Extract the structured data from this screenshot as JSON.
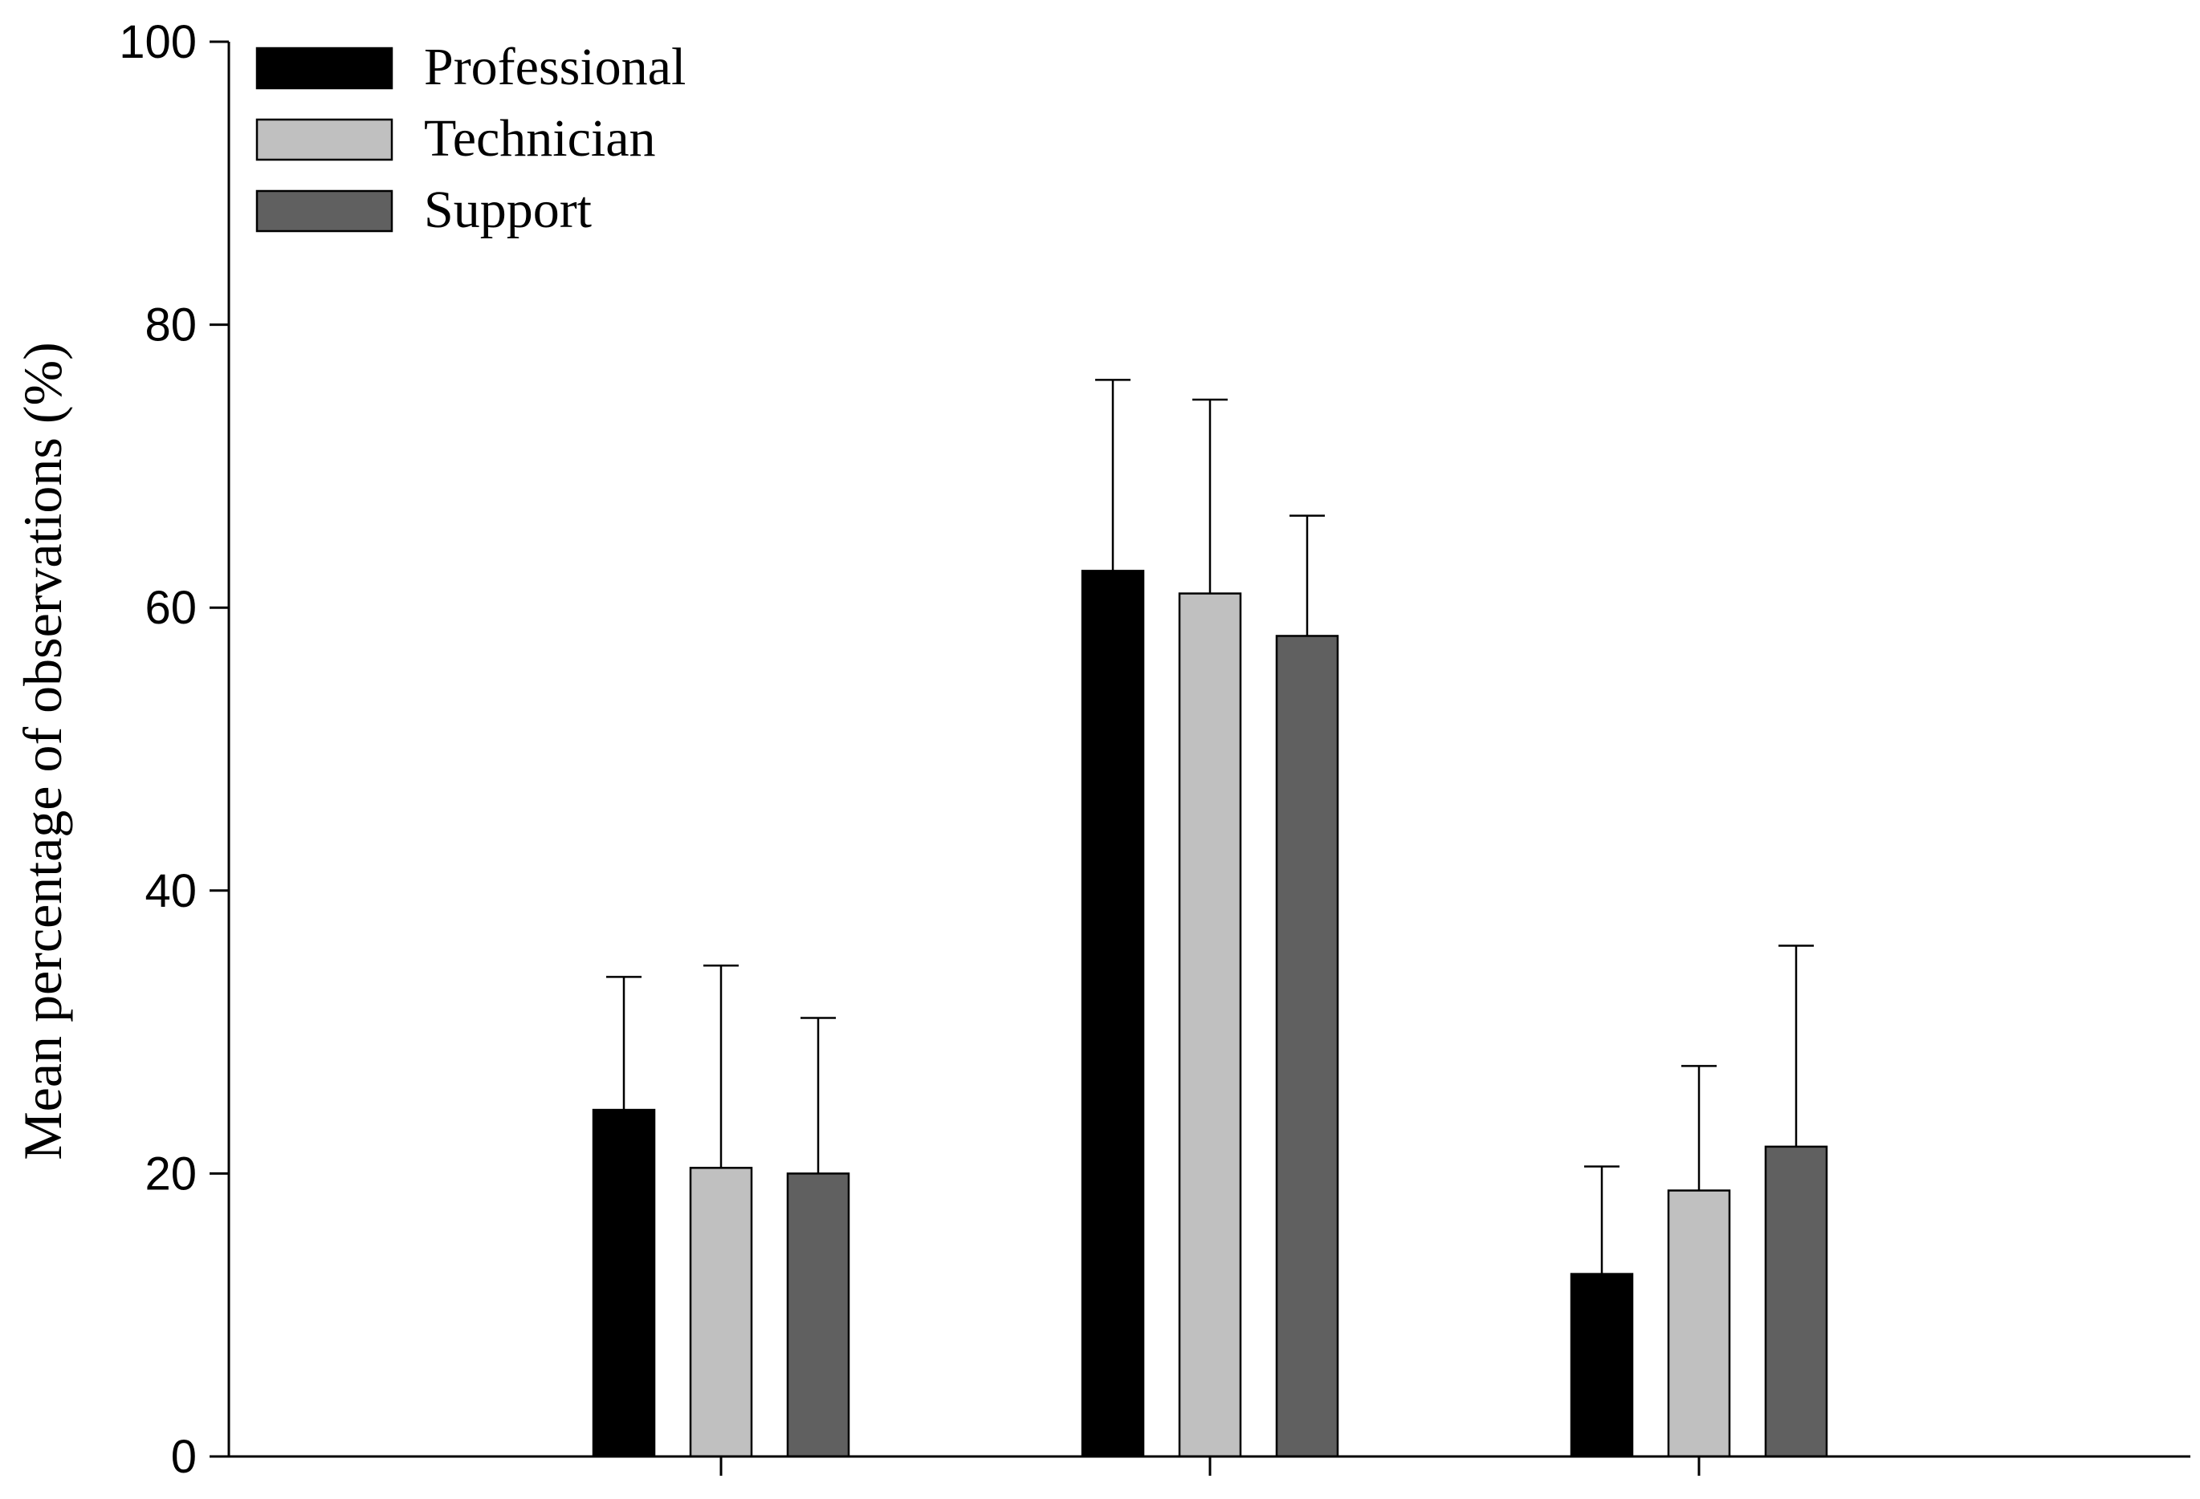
{
  "chart_data": {
    "type": "bar",
    "categories": [
      "",
      "",
      ""
    ],
    "ylabel": "Mean percentage of observations (%)",
    "xlabel": "",
    "ylim": [
      0,
      100
    ],
    "yticks": [
      0,
      20,
      40,
      60,
      80,
      100
    ],
    "error_bars": "upper",
    "legend_position": "top-left",
    "grid": false,
    "series": [
      {
        "name": "Professional",
        "color": "#000000",
        "values": [
          24.5,
          62.6,
          12.9
        ],
        "errors": [
          9.4,
          13.5,
          7.6
        ]
      },
      {
        "name": "Technician",
        "color": "#c0c0c0",
        "values": [
          20.4,
          61.0,
          18.8
        ],
        "errors": [
          14.3,
          13.7,
          8.8
        ]
      },
      {
        "name": "Support",
        "color": "#606060",
        "values": [
          20.0,
          58.0,
          21.9
        ],
        "errors": [
          11.0,
          8.5,
          14.2
        ]
      }
    ]
  }
}
